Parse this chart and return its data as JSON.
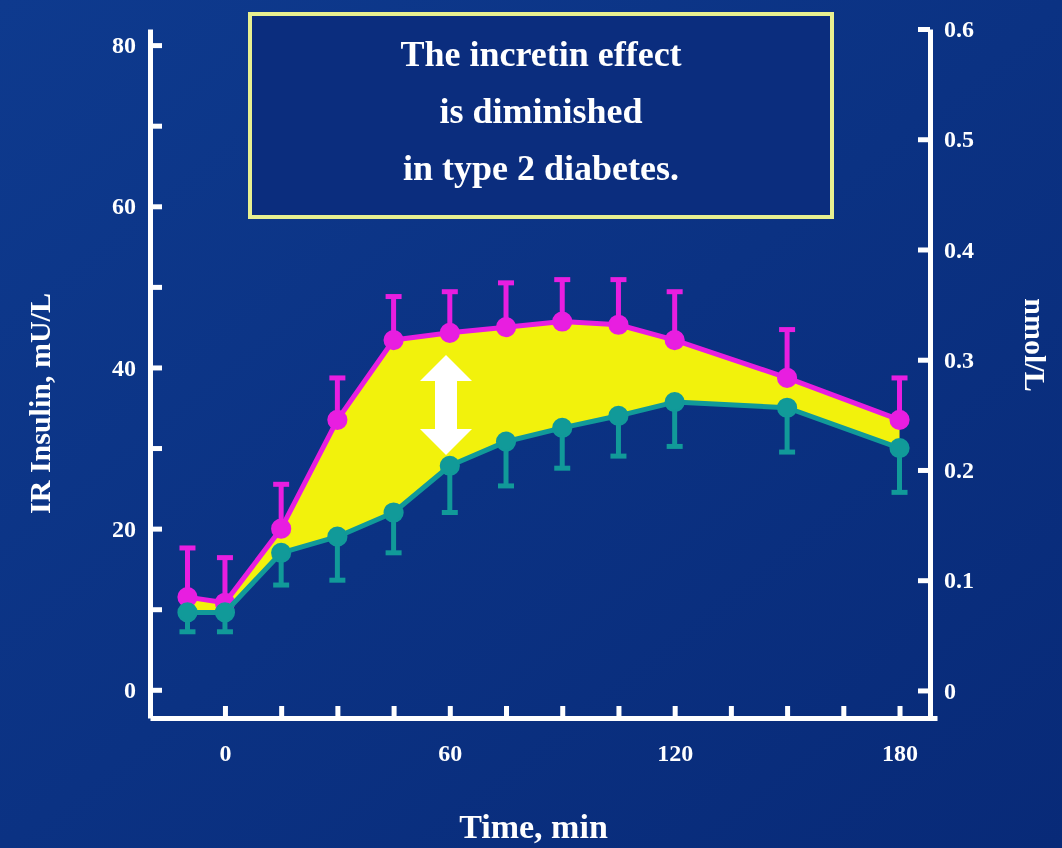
{
  "chart_data": {
    "type": "line",
    "title": "The incretin effect\nis diminished\nin type 2 diabetes.",
    "xlabel": "Time, min",
    "ylabel": "IR Insulin, mU/L",
    "y2label": "nmol/L",
    "x": [
      -10,
      0,
      15,
      30,
      45,
      60,
      75,
      90,
      105,
      120,
      150,
      180
    ],
    "xlim": [
      -20,
      190
    ],
    "xticks": [
      0,
      {
        "value": 15,
        "label": null
      },
      {
        "value": 30,
        "label": null
      },
      {
        "value": 45,
        "label": null
      },
      60,
      {
        "value": 75,
        "label": null
      },
      {
        "value": 90,
        "label": null
      },
      {
        "value": 105,
        "label": null
      },
      120,
      {
        "value": 135,
        "label": null
      },
      {
        "value": 150,
        "label": null
      },
      {
        "value": 165,
        "label": null
      },
      180
    ],
    "ylim": [
      -3.5,
      82
    ],
    "yticks": [
      0,
      {
        "value": 10,
        "label": null
      },
      20,
      {
        "value": 30,
        "label": null
      },
      40,
      {
        "value": 50,
        "label": null
      },
      60,
      {
        "value": 70,
        "label": null
      },
      80
    ],
    "y2lim": [
      -0.025,
      0.6
    ],
    "y2ticks": [
      0,
      0.1,
      0.2,
      0.3,
      0.4,
      0.5,
      0.6
    ],
    "marker": "circle",
    "grid": false,
    "series": [
      {
        "color": "#e81ee0",
        "values": [
          11.5,
          10.8,
          20,
          33.5,
          43.4,
          44.3,
          45,
          45.7,
          45.3,
          43.4,
          38.7,
          33.5
        ],
        "errors": [
          [
            11.5,
            17.6
          ],
          [
            10.8,
            16.4
          ],
          [
            20,
            25.5
          ],
          [
            33.5,
            38.7
          ],
          [
            43.4,
            48.8
          ],
          [
            44.3,
            49.4
          ],
          [
            45,
            50.5
          ],
          [
            45.7,
            50.9
          ],
          [
            45.3,
            50.9
          ],
          [
            43.4,
            49.4
          ],
          [
            38.7,
            44.7
          ],
          [
            33.5,
            38.7
          ]
        ]
      },
      {
        "color": "#119a99",
        "values": [
          9.6,
          9.6,
          17,
          19,
          22,
          27.8,
          30.8,
          32.5,
          34,
          35.7,
          35,
          30
        ],
        "errors": [
          [
            7.2,
            9.6
          ],
          [
            7.2,
            9.6
          ],
          [
            13,
            17
          ],
          [
            13.6,
            19
          ],
          [
            17,
            22
          ],
          [
            22,
            27.8
          ],
          [
            25.3,
            30.8
          ],
          [
            27.5,
            32.5
          ],
          [
            29,
            34
          ],
          [
            30.2,
            35.7
          ],
          [
            29.5,
            35
          ],
          [
            24.5,
            30
          ]
        ]
      }
    ]
  }
}
